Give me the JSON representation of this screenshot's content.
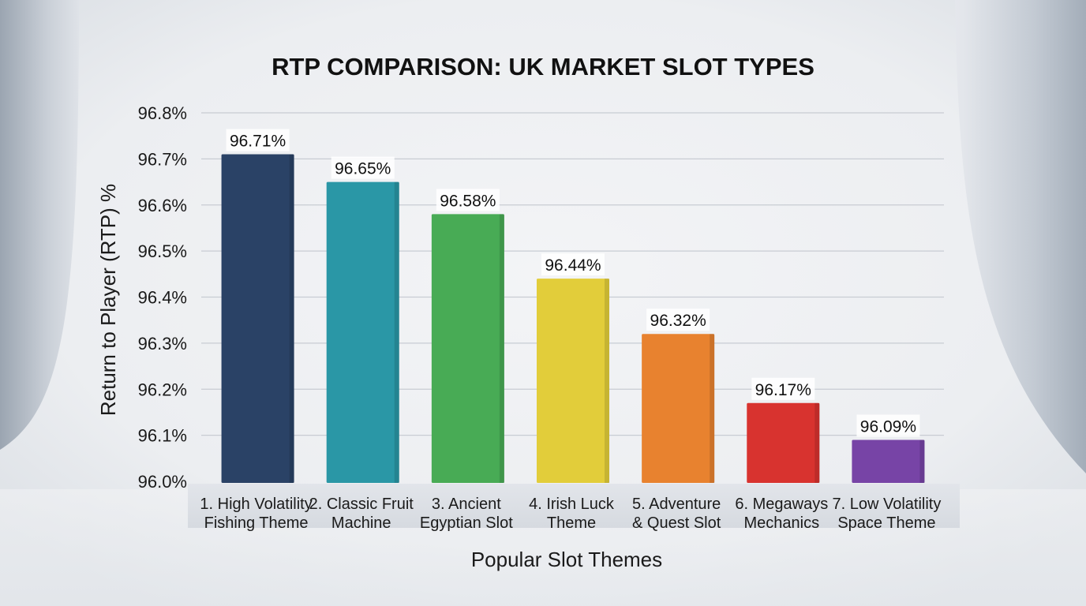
{
  "chart_data": {
    "type": "bar",
    "title": "RTP COMPARISON: UK MARKET SLOT TYPES",
    "xlabel": "Popular Slot Themes",
    "ylabel": "Return to Player (RTP) %",
    "ylim": [
      96.0,
      96.8
    ],
    "yticks": [
      "96.0%",
      "96.1%",
      "96.2%",
      "96.3%",
      "96.4%",
      "96.5%",
      "96.6%",
      "96.7%",
      "96.8%"
    ],
    "grid": true,
    "categories": [
      [
        "1. High Volatility",
        "Fishing Theme"
      ],
      [
        "2. Classic Fruit",
        "Machine"
      ],
      [
        "3. Ancient",
        "Egyptian Slot"
      ],
      [
        "4. Irish Luck",
        "Theme"
      ],
      [
        "5. Adventure",
        "& Quest Slot"
      ],
      [
        "6. Megaways",
        "Mechanics"
      ],
      [
        "7. Low Volatility",
        "Space Theme"
      ]
    ],
    "values": [
      96.71,
      96.65,
      96.58,
      96.44,
      96.32,
      96.17,
      96.09
    ],
    "value_labels": [
      "96.71%",
      "96.65%",
      "96.58%",
      "96.44%",
      "96.32%",
      "96.17%",
      "96.09%"
    ],
    "colors": [
      "#2a4266",
      "#2a97a6",
      "#48ab55",
      "#e2cd3a",
      "#e8822f",
      "#d8332f",
      "#7744a6"
    ]
  }
}
